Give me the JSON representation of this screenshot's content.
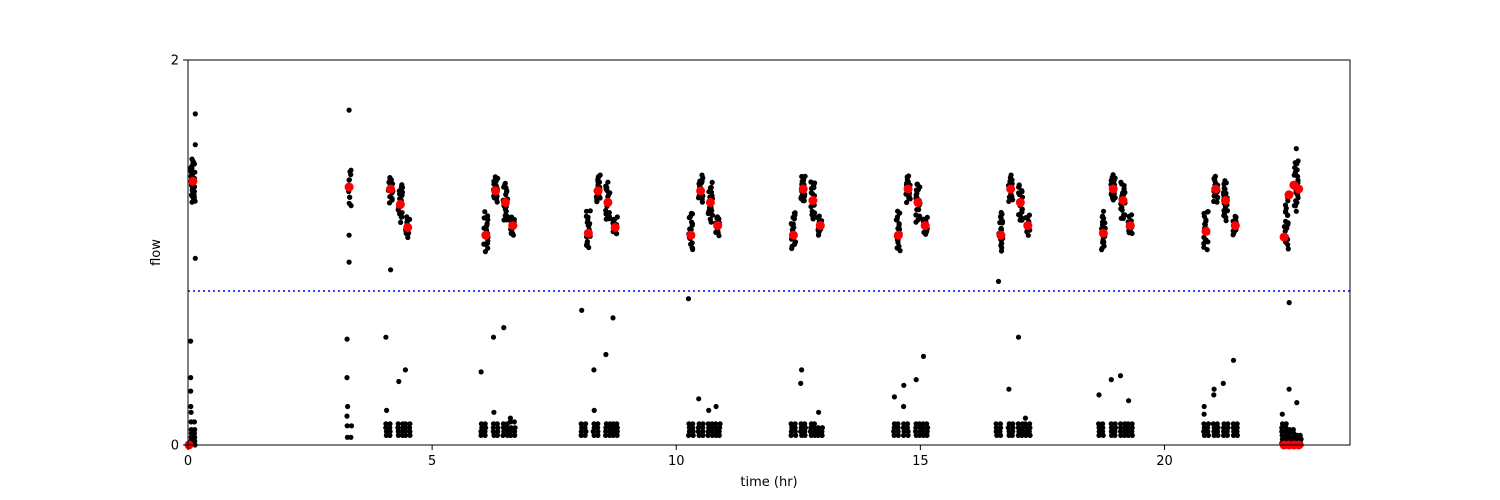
{
  "chart_data": {
    "type": "scatter",
    "xlabel": "time (hr)",
    "ylabel": "flow",
    "xlim": [
      0,
      23.8
    ],
    "ylim": [
      0,
      2
    ],
    "x_ticks": [
      0,
      5,
      10,
      15,
      20
    ],
    "x_tick_labels": [
      "0",
      "5",
      "10",
      "15",
      "20"
    ],
    "y_ticks": [
      0,
      2
    ],
    "y_tick_labels": [
      "0",
      "2"
    ],
    "grid": false,
    "threshold": {
      "y": 0.8,
      "color": "#0000ff",
      "style": "dotted"
    },
    "colors": {
      "raw": "#000000",
      "summary": "#ff0000",
      "threshold": "#0000ff"
    },
    "series": [
      {
        "role": "raw",
        "color": "#000000",
        "clusters": [
          {
            "x": 0.1,
            "center": 1.37,
            "spread": 0.07,
            "n": 40
          },
          {
            "x": 3.3,
            "center": 1.34,
            "spread": 0.06,
            "n": 12
          },
          {
            "x": 4.15,
            "center": 1.33,
            "spread": 0.04,
            "n": 20
          },
          {
            "x": 4.35,
            "center": 1.26,
            "spread": 0.06,
            "n": 20
          },
          {
            "x": 4.5,
            "center": 1.13,
            "spread": 0.03,
            "n": 14
          },
          {
            "x": 6.1,
            "center": 1.11,
            "spread": 0.06,
            "n": 20
          },
          {
            "x": 6.3,
            "center": 1.33,
            "spread": 0.04,
            "n": 20
          },
          {
            "x": 6.5,
            "center": 1.26,
            "spread": 0.06,
            "n": 20
          },
          {
            "x": 6.65,
            "center": 1.14,
            "spread": 0.03,
            "n": 14
          },
          {
            "x": 8.2,
            "center": 1.12,
            "spread": 0.06,
            "n": 20
          },
          {
            "x": 8.4,
            "center": 1.33,
            "spread": 0.04,
            "n": 20
          },
          {
            "x": 8.6,
            "center": 1.26,
            "spread": 0.06,
            "n": 20
          },
          {
            "x": 8.75,
            "center": 1.14,
            "spread": 0.03,
            "n": 14
          },
          {
            "x": 10.3,
            "center": 1.11,
            "spread": 0.06,
            "n": 20
          },
          {
            "x": 10.5,
            "center": 1.33,
            "spread": 0.04,
            "n": 20
          },
          {
            "x": 10.7,
            "center": 1.26,
            "spread": 0.06,
            "n": 20
          },
          {
            "x": 10.85,
            "center": 1.14,
            "spread": 0.03,
            "n": 14
          },
          {
            "x": 12.4,
            "center": 1.11,
            "spread": 0.06,
            "n": 20
          },
          {
            "x": 12.6,
            "center": 1.33,
            "spread": 0.04,
            "n": 20
          },
          {
            "x": 12.8,
            "center": 1.27,
            "spread": 0.06,
            "n": 20
          },
          {
            "x": 12.95,
            "center": 1.14,
            "spread": 0.03,
            "n": 14
          },
          {
            "x": 14.55,
            "center": 1.11,
            "spread": 0.06,
            "n": 20
          },
          {
            "x": 14.75,
            "center": 1.33,
            "spread": 0.04,
            "n": 20
          },
          {
            "x": 14.95,
            "center": 1.26,
            "spread": 0.06,
            "n": 20
          },
          {
            "x": 15.1,
            "center": 1.14,
            "spread": 0.03,
            "n": 14
          },
          {
            "x": 16.65,
            "center": 1.11,
            "spread": 0.06,
            "n": 20
          },
          {
            "x": 16.85,
            "center": 1.33,
            "spread": 0.04,
            "n": 20
          },
          {
            "x": 17.05,
            "center": 1.26,
            "spread": 0.06,
            "n": 20
          },
          {
            "x": 17.2,
            "center": 1.14,
            "spread": 0.03,
            "n": 14
          },
          {
            "x": 18.75,
            "center": 1.11,
            "spread": 0.06,
            "n": 20
          },
          {
            "x": 18.95,
            "center": 1.34,
            "spread": 0.04,
            "n": 20
          },
          {
            "x": 19.15,
            "center": 1.27,
            "spread": 0.06,
            "n": 20
          },
          {
            "x": 19.3,
            "center": 1.14,
            "spread": 0.03,
            "n": 14
          },
          {
            "x": 20.85,
            "center": 1.12,
            "spread": 0.06,
            "n": 20
          },
          {
            "x": 21.05,
            "center": 1.33,
            "spread": 0.04,
            "n": 20
          },
          {
            "x": 21.25,
            "center": 1.27,
            "spread": 0.06,
            "n": 20
          },
          {
            "x": 21.45,
            "center": 1.14,
            "spread": 0.03,
            "n": 14
          },
          {
            "x": 22.5,
            "center": 1.15,
            "spread": 0.08,
            "n": 20
          },
          {
            "x": 22.7,
            "center": 1.35,
            "spread": 0.08,
            "n": 24
          }
        ],
        "low_clusters": [
          {
            "x": 0.1,
            "levels": [
              0.0,
              0.02,
              0.04,
              0.06,
              0.08,
              0.12,
              0.17,
              0.2,
              0.28,
              0.35,
              0.54
            ]
          },
          {
            "x": 3.3,
            "levels": [
              0.04,
              0.1,
              0.15,
              0.2,
              0.35,
              0.55
            ]
          },
          {
            "x": 4.1,
            "levels": [
              0.05,
              0.07,
              0.09,
              0.11,
              0.18,
              0.56
            ]
          },
          {
            "x": 4.35,
            "levels": [
              0.05,
              0.07,
              0.09,
              0.11,
              0.33
            ]
          },
          {
            "x": 4.5,
            "levels": [
              0.05,
              0.07,
              0.09,
              0.11,
              0.39
            ]
          },
          {
            "x": 6.05,
            "levels": [
              0.05,
              0.07,
              0.09,
              0.11,
              0.38
            ]
          },
          {
            "x": 6.3,
            "levels": [
              0.05,
              0.07,
              0.09,
              0.11,
              0.17,
              0.56
            ]
          },
          {
            "x": 6.5,
            "levels": [
              0.05,
              0.07,
              0.09,
              0.11,
              0.61
            ]
          },
          {
            "x": 6.65,
            "levels": [
              0.05,
              0.07,
              0.09,
              0.12,
              0.14
            ]
          },
          {
            "x": 8.1,
            "levels": [
              0.05,
              0.07,
              0.09,
              0.11,
              0.7
            ]
          },
          {
            "x": 8.35,
            "levels": [
              0.05,
              0.07,
              0.09,
              0.11,
              0.18,
              0.39
            ]
          },
          {
            "x": 8.6,
            "levels": [
              0.05,
              0.07,
              0.09,
              0.11,
              0.47
            ]
          },
          {
            "x": 8.75,
            "levels": [
              0.05,
              0.07,
              0.09,
              0.11,
              0.66
            ]
          },
          {
            "x": 10.3,
            "levels": [
              0.05,
              0.07,
              0.09,
              0.11,
              0.76
            ]
          },
          {
            "x": 10.5,
            "levels": [
              0.05,
              0.07,
              0.09,
              0.11,
              0.24
            ]
          },
          {
            "x": 10.7,
            "levels": [
              0.05,
              0.07,
              0.09,
              0.11,
              0.18
            ]
          },
          {
            "x": 10.85,
            "levels": [
              0.05,
              0.07,
              0.09,
              0.11,
              0.2
            ]
          },
          {
            "x": 12.4,
            "levels": [
              0.05,
              0.07,
              0.09,
              0.11
            ]
          },
          {
            "x": 12.6,
            "levels": [
              0.05,
              0.07,
              0.09,
              0.11,
              0.32,
              0.39
            ]
          },
          {
            "x": 12.8,
            "levels": [
              0.05,
              0.07,
              0.09,
              0.11
            ]
          },
          {
            "x": 12.95,
            "levels": [
              0.05,
              0.07,
              0.09,
              0.17
            ]
          },
          {
            "x": 14.5,
            "levels": [
              0.05,
              0.07,
              0.09,
              0.11,
              0.25
            ]
          },
          {
            "x": 14.7,
            "levels": [
              0.05,
              0.07,
              0.09,
              0.11,
              0.2,
              0.31
            ]
          },
          {
            "x": 14.95,
            "levels": [
              0.05,
              0.07,
              0.09,
              0.11,
              0.34
            ]
          },
          {
            "x": 15.1,
            "levels": [
              0.05,
              0.07,
              0.09,
              0.11,
              0.46
            ]
          },
          {
            "x": 16.6,
            "levels": [
              0.05,
              0.07,
              0.09,
              0.11
            ]
          },
          {
            "x": 16.85,
            "levels": [
              0.05,
              0.07,
              0.09,
              0.11,
              0.29
            ]
          },
          {
            "x": 17.05,
            "levels": [
              0.05,
              0.07,
              0.09,
              0.11,
              0.56
            ]
          },
          {
            "x": 17.2,
            "levels": [
              0.05,
              0.07,
              0.09,
              0.11,
              0.14
            ]
          },
          {
            "x": 18.7,
            "levels": [
              0.05,
              0.07,
              0.09,
              0.11,
              0.26
            ]
          },
          {
            "x": 18.95,
            "levels": [
              0.05,
              0.07,
              0.09,
              0.11,
              0.34
            ]
          },
          {
            "x": 19.15,
            "levels": [
              0.05,
              0.07,
              0.09,
              0.11,
              0.36
            ]
          },
          {
            "x": 19.3,
            "levels": [
              0.05,
              0.07,
              0.09,
              0.11,
              0.23
            ]
          },
          {
            "x": 20.85,
            "levels": [
              0.05,
              0.07,
              0.09,
              0.11,
              0.16,
              0.2
            ]
          },
          {
            "x": 21.05,
            "levels": [
              0.05,
              0.07,
              0.09,
              0.11,
              0.26,
              0.29
            ]
          },
          {
            "x": 21.25,
            "levels": [
              0.05,
              0.07,
              0.09,
              0.11,
              0.32
            ]
          },
          {
            "x": 21.45,
            "levels": [
              0.05,
              0.07,
              0.09,
              0.11,
              0.44
            ]
          },
          {
            "x": 22.45,
            "levels": [
              0.0,
              0.01,
              0.03,
              0.05,
              0.07,
              0.09,
              0.11,
              0.16
            ]
          },
          {
            "x": 22.6,
            "levels": [
              0.0,
              0.02,
              0.04,
              0.06,
              0.08,
              0.29,
              0.74
            ]
          },
          {
            "x": 22.75,
            "levels": [
              0.0,
              0.01,
              0.03,
              0.05,
              0.22
            ]
          }
        ],
        "outliers": [
          {
            "x": 0.15,
            "y": 1.72
          },
          {
            "x": 0.15,
            "y": 1.56
          },
          {
            "x": 0.15,
            "y": 0.97
          },
          {
            "x": 3.3,
            "y": 1.74
          },
          {
            "x": 3.3,
            "y": 1.09
          },
          {
            "x": 3.3,
            "y": 0.95
          },
          {
            "x": 4.15,
            "y": 0.91
          },
          {
            "x": 16.6,
            "y": 0.85
          },
          {
            "x": 22.7,
            "y": 1.54
          }
        ]
      },
      {
        "role": "summary",
        "color": "#ff0000",
        "points": [
          {
            "x": 0.1,
            "y": 1.37
          },
          {
            "x": 3.3,
            "y": 1.34
          },
          {
            "x": 4.15,
            "y": 1.33
          },
          {
            "x": 4.35,
            "y": 1.25
          },
          {
            "x": 4.5,
            "y": 1.13
          },
          {
            "x": 6.1,
            "y": 1.09
          },
          {
            "x": 6.3,
            "y": 1.32
          },
          {
            "x": 6.5,
            "y": 1.26
          },
          {
            "x": 6.65,
            "y": 1.14
          },
          {
            "x": 8.2,
            "y": 1.1
          },
          {
            "x": 8.4,
            "y": 1.32
          },
          {
            "x": 8.6,
            "y": 1.26
          },
          {
            "x": 8.75,
            "y": 1.13
          },
          {
            "x": 10.3,
            "y": 1.09
          },
          {
            "x": 10.5,
            "y": 1.32
          },
          {
            "x": 10.7,
            "y": 1.26
          },
          {
            "x": 10.85,
            "y": 1.14
          },
          {
            "x": 12.4,
            "y": 1.09
          },
          {
            "x": 12.6,
            "y": 1.33
          },
          {
            "x": 12.8,
            "y": 1.27
          },
          {
            "x": 12.95,
            "y": 1.14
          },
          {
            "x": 14.55,
            "y": 1.09
          },
          {
            "x": 14.75,
            "y": 1.33
          },
          {
            "x": 14.95,
            "y": 1.26
          },
          {
            "x": 15.1,
            "y": 1.14
          },
          {
            "x": 16.65,
            "y": 1.09
          },
          {
            "x": 16.85,
            "y": 1.33
          },
          {
            "x": 17.05,
            "y": 1.26
          },
          {
            "x": 17.2,
            "y": 1.14
          },
          {
            "x": 18.75,
            "y": 1.1
          },
          {
            "x": 18.95,
            "y": 1.33
          },
          {
            "x": 19.15,
            "y": 1.27
          },
          {
            "x": 19.3,
            "y": 1.14
          },
          {
            "x": 20.85,
            "y": 1.11
          },
          {
            "x": 21.05,
            "y": 1.33
          },
          {
            "x": 21.25,
            "y": 1.27
          },
          {
            "x": 21.45,
            "y": 1.14
          },
          {
            "x": 22.45,
            "y": 1.08
          },
          {
            "x": 22.55,
            "y": 1.3
          },
          {
            "x": 22.65,
            "y": 1.35
          },
          {
            "x": 22.75,
            "y": 1.33
          },
          {
            "x": 0.02,
            "y": 0.0
          },
          {
            "x": 22.45,
            "y": 0.0
          },
          {
            "x": 22.55,
            "y": 0.0
          },
          {
            "x": 22.65,
            "y": 0.0
          },
          {
            "x": 22.75,
            "y": 0.0
          }
        ]
      }
    ]
  }
}
